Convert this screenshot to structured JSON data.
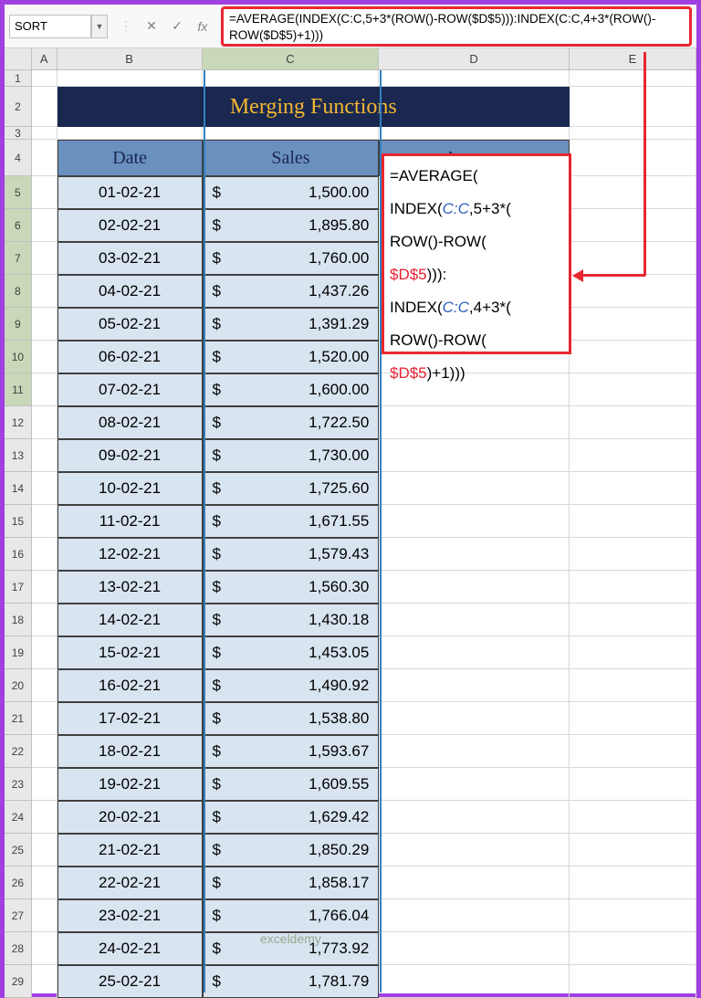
{
  "nameBox": "SORT",
  "formulaBar": "=AVERAGE(INDEX(C:C,5+3*(ROW()-ROW($D$5))):INDEX(C:C,4+3*(ROW()-ROW($D$5)+1)))",
  "title": "Merging Functions",
  "headers": {
    "date": "Date",
    "sales": "Sales",
    "average": "Average"
  },
  "columns": [
    "A",
    "B",
    "C",
    "D",
    "E"
  ],
  "formulaOverlay": {
    "line1": "=AVERAGE(",
    "line2a": "INDEX(",
    "line2b": "C:C",
    "line2c": ",5+3*(",
    "line3": "ROW()-ROW(",
    "line4a": "$D$5",
    "line4b": "))):",
    "line5a": "INDEX(",
    "line5b": "C:C",
    "line5c": ",4+3*(",
    "line6": "ROW()-ROW(",
    "line7a": "$D$5",
    "line7b": ")+1)))"
  },
  "rows": [
    {
      "n": 5,
      "date": "01-02-21",
      "sales": "1,500.00"
    },
    {
      "n": 6,
      "date": "02-02-21",
      "sales": "1,895.80"
    },
    {
      "n": 7,
      "date": "03-02-21",
      "sales": "1,760.00"
    },
    {
      "n": 8,
      "date": "04-02-21",
      "sales": "1,437.26"
    },
    {
      "n": 9,
      "date": "05-02-21",
      "sales": "1,391.29"
    },
    {
      "n": 10,
      "date": "06-02-21",
      "sales": "1,520.00"
    },
    {
      "n": 11,
      "date": "07-02-21",
      "sales": "1,600.00"
    },
    {
      "n": 12,
      "date": "08-02-21",
      "sales": "1,722.50"
    },
    {
      "n": 13,
      "date": "09-02-21",
      "sales": "1,730.00"
    },
    {
      "n": 14,
      "date": "10-02-21",
      "sales": "1,725.60"
    },
    {
      "n": 15,
      "date": "11-02-21",
      "sales": "1,671.55"
    },
    {
      "n": 16,
      "date": "12-02-21",
      "sales": "1,579.43"
    },
    {
      "n": 17,
      "date": "13-02-21",
      "sales": "1,560.30"
    },
    {
      "n": 18,
      "date": "14-02-21",
      "sales": "1,430.18"
    },
    {
      "n": 19,
      "date": "15-02-21",
      "sales": "1,453.05"
    },
    {
      "n": 20,
      "date": "16-02-21",
      "sales": "1,490.92"
    },
    {
      "n": 21,
      "date": "17-02-21",
      "sales": "1,538.80"
    },
    {
      "n": 22,
      "date": "18-02-21",
      "sales": "1,593.67"
    },
    {
      "n": 23,
      "date": "19-02-21",
      "sales": "1,609.55"
    },
    {
      "n": 24,
      "date": "20-02-21",
      "sales": "1,629.42"
    },
    {
      "n": 25,
      "date": "21-02-21",
      "sales": "1,850.29"
    },
    {
      "n": 26,
      "date": "22-02-21",
      "sales": "1,858.17"
    },
    {
      "n": 27,
      "date": "23-02-21",
      "sales": "1,766.04"
    },
    {
      "n": 28,
      "date": "24-02-21",
      "sales": "1,773.92"
    },
    {
      "n": 29,
      "date": "25-02-21",
      "sales": "1,781.79"
    }
  ],
  "currency": "$",
  "watermark": "exceldemy"
}
